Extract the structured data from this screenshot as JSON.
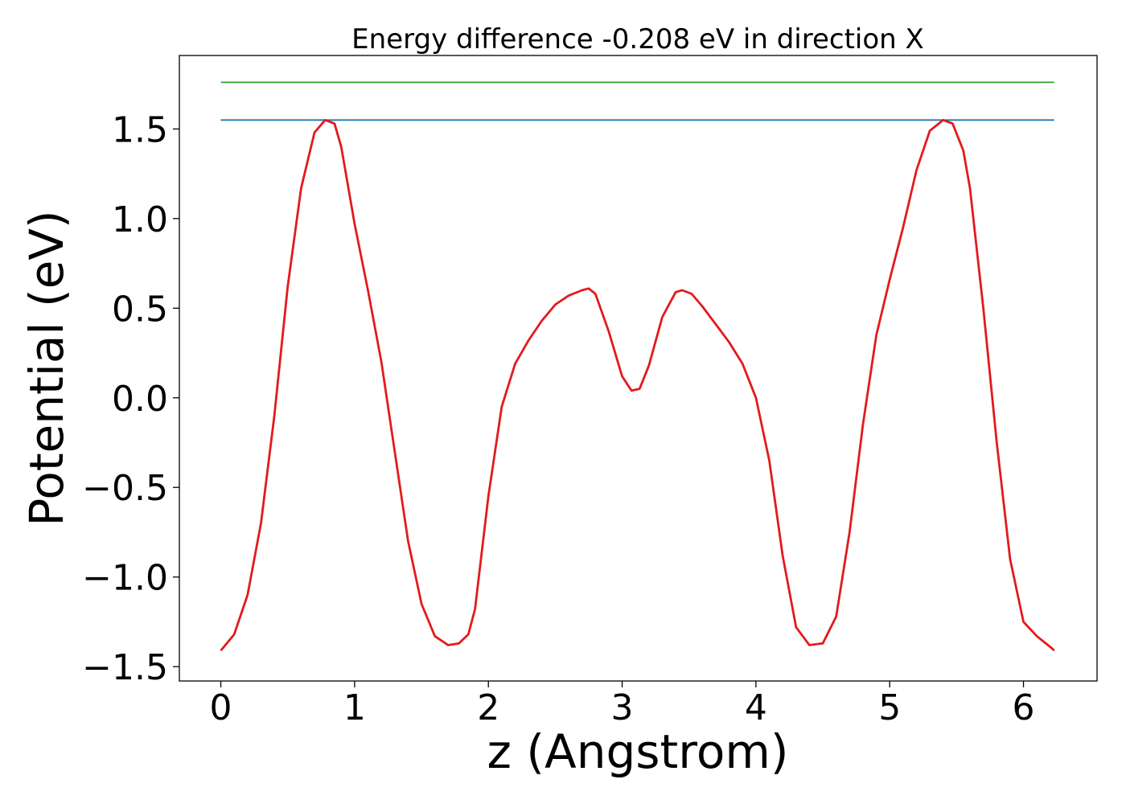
{
  "chart_data": {
    "type": "line",
    "title": "Energy difference -0.208 eV in direction X",
    "xlabel": "z (Angstrom)",
    "ylabel": "Potential (eV)",
    "xlim": [
      -0.31,
      6.55
    ],
    "ylim": [
      -1.58,
      1.91
    ],
    "x_ticks": [
      0,
      1,
      2,
      3,
      4,
      5,
      6
    ],
    "x_tick_labels": [
      "0",
      "1",
      "2",
      "3",
      "4",
      "5",
      "6"
    ],
    "y_ticks": [
      -1.5,
      -1.0,
      -0.5,
      0.0,
      0.5,
      1.0,
      1.5
    ],
    "y_tick_labels": [
      "−1.5",
      "−1.0",
      "−0.5",
      "0.0",
      "0.5",
      "1.0",
      "1.5"
    ],
    "grid": false,
    "series": [
      {
        "color": "#2ca02c",
        "x": [
          0.0,
          6.23
        ],
        "y": [
          1.76,
          1.76
        ]
      },
      {
        "color": "#1f77b4",
        "x": [
          0.0,
          6.23
        ],
        "y": [
          1.55,
          1.55
        ]
      },
      {
        "color": "#e31a1c",
        "x": [
          0.0,
          0.1,
          0.2,
          0.3,
          0.4,
          0.5,
          0.6,
          0.7,
          0.78,
          0.85,
          0.9,
          1.0,
          1.1,
          1.2,
          1.3,
          1.4,
          1.5,
          1.6,
          1.7,
          1.78,
          1.85,
          1.9,
          2.0,
          2.1,
          2.2,
          2.3,
          2.4,
          2.5,
          2.6,
          2.7,
          2.75,
          2.8,
          2.9,
          3.0,
          3.07,
          3.13,
          3.2,
          3.3,
          3.4,
          3.45,
          3.52,
          3.6,
          3.7,
          3.8,
          3.9,
          4.0,
          4.1,
          4.2,
          4.3,
          4.4,
          4.5,
          4.6,
          4.7,
          4.8,
          4.9,
          5.0,
          5.1,
          5.2,
          5.3,
          5.4,
          5.47,
          5.55,
          5.6,
          5.7,
          5.8,
          5.9,
          6.0,
          6.1,
          6.2,
          6.23
        ],
        "y": [
          -1.41,
          -1.32,
          -1.1,
          -0.7,
          -0.1,
          0.62,
          1.17,
          1.48,
          1.55,
          1.53,
          1.4,
          0.97,
          0.6,
          0.2,
          -0.3,
          -0.8,
          -1.15,
          -1.33,
          -1.38,
          -1.37,
          -1.32,
          -1.18,
          -0.55,
          -0.05,
          0.19,
          0.32,
          0.43,
          0.52,
          0.57,
          0.6,
          0.61,
          0.58,
          0.37,
          0.12,
          0.04,
          0.05,
          0.18,
          0.45,
          0.59,
          0.6,
          0.58,
          0.51,
          0.41,
          0.31,
          0.19,
          0.0,
          -0.35,
          -0.88,
          -1.28,
          -1.38,
          -1.37,
          -1.22,
          -0.75,
          -0.15,
          0.35,
          0.66,
          0.95,
          1.27,
          1.49,
          1.55,
          1.53,
          1.38,
          1.17,
          0.5,
          -0.25,
          -0.9,
          -1.25,
          -1.33,
          -1.39,
          -1.41
        ]
      }
    ]
  }
}
